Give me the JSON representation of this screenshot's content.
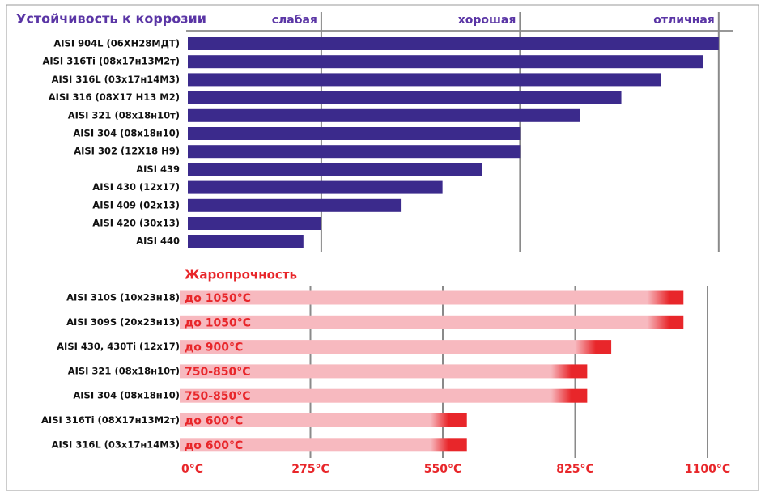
{
  "chart_data": [
    {
      "type": "bar",
      "title": "Устойчивость к коррозии",
      "color": "#3b2a8c",
      "grid": true,
      "categories": [
        "AISI 904L (06ХН28МДТ)",
        "AISI 316Ti (08х17н13М2т)",
        "AISI 316L (03х17н14М3)",
        "AISI 316 (08Х17 Н13 М2)",
        "AISI 321 (08х18н10т)",
        "AISI 304 (08х18н10)",
        "AISI 302 (12Х18 Н9)",
        "AISI 439",
        "AISI 430 (12х17)",
        "AISI 409 (02х13)",
        "AISI 420 (30х13)",
        "AISI 440"
      ],
      "values": [
        3.0,
        2.92,
        2.71,
        2.51,
        2.3,
        2.0,
        2.0,
        1.81,
        1.61,
        1.4,
        1.0,
        0.91
      ],
      "xlim": [
        0.32,
        3.07
      ],
      "xticks": [
        {
          "value": 1,
          "label": "слабая"
        },
        {
          "value": 2,
          "label": "хорошая"
        },
        {
          "value": 3,
          "label": "отличная"
        }
      ]
    },
    {
      "type": "bar",
      "title": "Жаропрочность",
      "color": "#e8262a",
      "grid": true,
      "categories": [
        "AISI 310S (10х23н18)",
        "AISI 309S (20х23н13)",
        "AISI 430, 430Ti (12х17)",
        "AISI 321 (08х18н10т)",
        "AISI 304 (08х18н10)",
        "AISI 316Ti (08Х17н13М2т)",
        "AISI 316L (03х17н14М3)"
      ],
      "values": [
        1050,
        1050,
        900,
        850,
        850,
        600,
        600
      ],
      "value_labels": [
        "до 1050°C",
        "до 1050°C",
        "до 900°C",
        "750-850°C",
        "750-850°C",
        "до 600°C",
        "до 600°C"
      ],
      "xlim": [
        0,
        1100
      ],
      "xticks": [
        {
          "value": 0,
          "label": "0°C"
        },
        {
          "value": 275,
          "label": "275°C"
        },
        {
          "value": 550,
          "label": "550°C"
        },
        {
          "value": 825,
          "label": "825°C"
        },
        {
          "value": 1100,
          "label": "1100°C"
        }
      ]
    }
  ]
}
